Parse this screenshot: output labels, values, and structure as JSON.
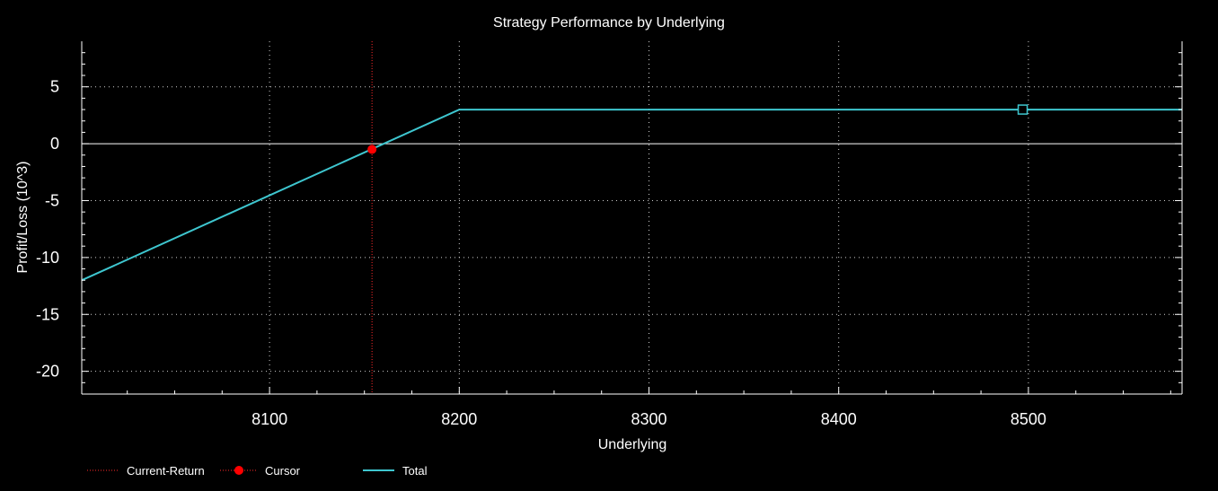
{
  "chart_data": {
    "type": "line",
    "title": "Strategy Performance by Underlying",
    "xlabel": "Underlying",
    "ylabel": "Profit/Loss (10^3)",
    "xlim": [
      8001,
      8581
    ],
    "ylim": [
      -22,
      9
    ],
    "x_ticks": [
      8100,
      8200,
      8300,
      8400,
      8500
    ],
    "x_tick_labels": [
      "8100",
      "8200",
      "8300",
      "8400",
      "8500"
    ],
    "y_ticks": [
      5,
      0,
      -5,
      -10,
      -15,
      -20
    ],
    "y_tick_labels": [
      "5",
      "0",
      "-5",
      "-10",
      "-15",
      "-20"
    ],
    "grid": true,
    "zero_line": true,
    "legend_position": "bottom-left",
    "series": [
      {
        "name": "Total",
        "color": "#3ec6cf",
        "x": [
          8001,
          8200,
          8581
        ],
        "y": [
          -12,
          3,
          3
        ]
      }
    ],
    "current_return": {
      "name": "Current-Return",
      "x": 8154,
      "color": "#ff2a2a"
    },
    "cursor": {
      "name": "Cursor",
      "x": 8154,
      "y": -0.5,
      "color": "#ff0000"
    },
    "marker": {
      "x": 8497,
      "y": 3,
      "color": "#3ec6cf"
    }
  }
}
